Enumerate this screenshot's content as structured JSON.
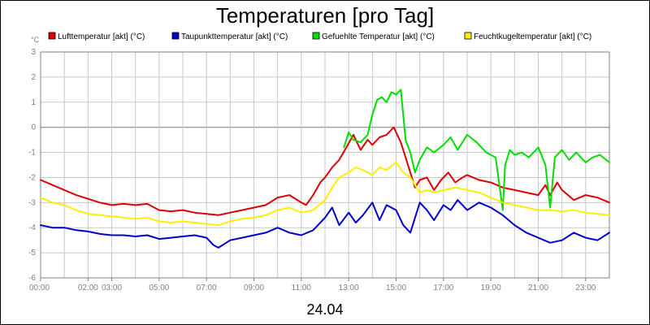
{
  "chart_data": {
    "type": "line",
    "title": "Temperaturen [pro Tag]",
    "date_label": "24.04",
    "ylabel": "°C",
    "ylim": [
      -6,
      3
    ],
    "xlim": [
      0,
      24
    ],
    "yticks": [
      3,
      2,
      1,
      0,
      -1,
      -2,
      -3,
      -4,
      -5,
      -6
    ],
    "xticks": [
      {
        "t": 0,
        "label": "00:00"
      },
      {
        "t": 2,
        "label": "02:00"
      },
      {
        "t": 3,
        "label": "03:00"
      },
      {
        "t": 5,
        "label": "05:00"
      },
      {
        "t": 7,
        "label": "07:00"
      },
      {
        "t": 9,
        "label": "09:00"
      },
      {
        "t": 11,
        "label": "11:00"
      },
      {
        "t": 13,
        "label": "13:00"
      },
      {
        "t": 15,
        "label": "15:00"
      },
      {
        "t": 17,
        "label": "17:00"
      },
      {
        "t": 19,
        "label": "19:00"
      },
      {
        "t": 21,
        "label": "21:00"
      },
      {
        "t": 23,
        "label": "23:00"
      }
    ],
    "grid": true,
    "legend_placement": "top",
    "series": [
      {
        "name": "Lufttemperatur [akt] (°C)",
        "color": "#dd0000",
        "x": [
          0,
          0.5,
          1,
          1.5,
          2,
          2.5,
          3,
          3.5,
          4,
          4.5,
          5,
          5.5,
          6,
          6.5,
          7,
          7.5,
          8,
          8.5,
          9,
          9.5,
          10,
          10.5,
          11,
          11.2,
          11.5,
          11.8,
          12,
          12.3,
          12.6,
          12.9,
          13.2,
          13.5,
          13.8,
          14,
          14.3,
          14.6,
          14.9,
          15.2,
          15.5,
          15.8,
          16,
          16.3,
          16.6,
          16.9,
          17.2,
          17.5,
          17.8,
          18,
          18.5,
          19,
          19.5,
          20,
          20.5,
          21,
          21.3,
          21.5,
          21.8,
          22,
          22.5,
          23,
          23.5,
          24
        ],
        "values": [
          -2.1,
          -2.3,
          -2.5,
          -2.7,
          -2.85,
          -3.0,
          -3.1,
          -3.05,
          -3.1,
          -3.05,
          -3.3,
          -3.35,
          -3.3,
          -3.4,
          -3.45,
          -3.5,
          -3.4,
          -3.3,
          -3.2,
          -3.1,
          -2.8,
          -2.7,
          -3.0,
          -3.1,
          -2.7,
          -2.2,
          -2.0,
          -1.6,
          -1.3,
          -0.8,
          -0.3,
          -0.9,
          -0.5,
          -0.7,
          -0.4,
          -0.3,
          0.0,
          -0.6,
          -1.5,
          -2.4,
          -2.1,
          -2.0,
          -2.5,
          -2.1,
          -1.8,
          -2.2,
          -2.0,
          -1.9,
          -2.1,
          -2.2,
          -2.4,
          -2.5,
          -2.6,
          -2.7,
          -2.3,
          -2.7,
          -2.2,
          -2.5,
          -2.9,
          -2.7,
          -2.8,
          -3.0
        ]
      },
      {
        "name": "Taupunkttemperatur [akt] (°C)",
        "color": "#0000cc",
        "x": [
          0,
          0.5,
          1,
          1.5,
          2,
          2.5,
          3,
          3.5,
          4,
          4.5,
          5,
          5.5,
          6,
          6.5,
          7,
          7.3,
          7.5,
          8,
          8.5,
          9,
          9.5,
          10,
          10.5,
          11,
          11.5,
          12,
          12.3,
          12.6,
          13,
          13.3,
          13.6,
          14,
          14.3,
          14.6,
          15,
          15.3,
          15.6,
          16,
          16.3,
          16.6,
          17,
          17.3,
          17.6,
          18,
          18.5,
          19,
          19.5,
          20,
          20.5,
          21,
          21.5,
          22,
          22.5,
          23,
          23.5,
          24
        ],
        "values": [
          -3.9,
          -4.0,
          -4.0,
          -4.1,
          -4.15,
          -4.25,
          -4.3,
          -4.3,
          -4.35,
          -4.3,
          -4.45,
          -4.4,
          -4.35,
          -4.3,
          -4.4,
          -4.7,
          -4.8,
          -4.5,
          -4.4,
          -4.3,
          -4.2,
          -4.0,
          -4.2,
          -4.3,
          -4.1,
          -3.6,
          -3.2,
          -3.9,
          -3.4,
          -3.8,
          -3.5,
          -3.0,
          -3.7,
          -3.1,
          -3.3,
          -3.9,
          -4.2,
          -3.0,
          -3.3,
          -3.7,
          -3.1,
          -3.3,
          -2.9,
          -3.3,
          -3.0,
          -3.2,
          -3.5,
          -3.9,
          -4.2,
          -4.4,
          -4.6,
          -4.5,
          -4.2,
          -4.4,
          -4.5,
          -4.2
        ]
      },
      {
        "name": "Gefuehlte Temperatur [akt] (°C)",
        "color": "#00dd00",
        "x": [
          12.8,
          13,
          13.2,
          13.5,
          13.8,
          14,
          14.2,
          14.4,
          14.6,
          14.8,
          15,
          15.2,
          15.4,
          15.6,
          15.8,
          16,
          16.3,
          16.6,
          17,
          17.3,
          17.6,
          18,
          18.4,
          18.8,
          19.2,
          19.5,
          19.6,
          19.8,
          20,
          20.3,
          20.6,
          21,
          21.3,
          21.5,
          21.7,
          22,
          22.3,
          22.6,
          23,
          23.3,
          23.6,
          24
        ],
        "values": [
          -0.8,
          -0.2,
          -0.5,
          -0.6,
          -0.3,
          0.5,
          1.1,
          1.2,
          1.0,
          1.4,
          1.3,
          1.5,
          -0.5,
          -1.0,
          -1.8,
          -1.3,
          -0.8,
          -1.0,
          -0.7,
          -0.4,
          -0.9,
          -0.3,
          -0.6,
          -1.0,
          -1.2,
          -3.3,
          -1.5,
          -0.9,
          -1.1,
          -1.0,
          -1.2,
          -0.8,
          -1.5,
          -3.2,
          -1.2,
          -0.9,
          -1.3,
          -1.0,
          -1.4,
          -1.2,
          -1.1,
          -1.4
        ]
      },
      {
        "name": "Feuchtkugeltemperatur [akt] (°C)",
        "color": "#ffee00",
        "x": [
          0,
          0.5,
          1,
          1.5,
          2,
          2.5,
          3,
          3.5,
          4,
          4.5,
          5,
          5.5,
          6,
          6.5,
          7,
          7.5,
          8,
          8.5,
          9,
          9.5,
          10,
          10.5,
          11,
          11.5,
          12,
          12.3,
          12.6,
          13,
          13.3,
          13.6,
          14,
          14.3,
          14.6,
          15,
          15.3,
          15.6,
          16,
          16.3,
          16.6,
          17,
          17.5,
          18,
          18.5,
          19,
          19.5,
          20,
          20.5,
          21,
          21.5,
          22,
          22.5,
          23,
          23.5,
          24
        ],
        "values": [
          -2.8,
          -3.0,
          -3.1,
          -3.3,
          -3.45,
          -3.5,
          -3.55,
          -3.6,
          -3.65,
          -3.6,
          -3.75,
          -3.8,
          -3.75,
          -3.8,
          -3.85,
          -3.9,
          -3.75,
          -3.65,
          -3.6,
          -3.5,
          -3.3,
          -3.2,
          -3.4,
          -3.3,
          -2.9,
          -2.4,
          -2.0,
          -1.8,
          -1.6,
          -1.7,
          -1.9,
          -1.6,
          -1.7,
          -1.4,
          -1.8,
          -2.0,
          -2.6,
          -2.5,
          -2.6,
          -2.5,
          -2.4,
          -2.5,
          -2.6,
          -2.8,
          -3.0,
          -3.1,
          -3.2,
          -3.3,
          -3.3,
          -3.35,
          -3.3,
          -3.4,
          -3.45,
          -3.5
        ]
      }
    ]
  }
}
